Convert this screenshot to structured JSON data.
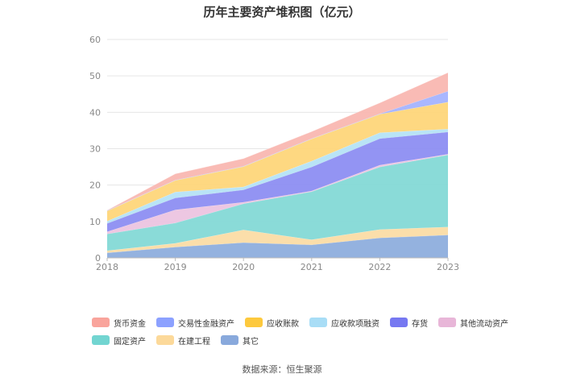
{
  "chart_data": {
    "type": "area",
    "stacked": true,
    "title": "历年主要资产堆积图（亿元）",
    "x": [
      "2018",
      "2019",
      "2020",
      "2021",
      "2022",
      "2023"
    ],
    "ylim": [
      0,
      60
    ],
    "yticks": [
      0,
      10,
      20,
      30,
      40,
      50,
      60
    ],
    "grid": true,
    "legend_position": "bottom",
    "series": [
      {
        "name": "其它",
        "color": "#8eaedd",
        "values": [
          1.4,
          3.0,
          4.2,
          3.6,
          5.5,
          6.3
        ]
      },
      {
        "name": "在建工程",
        "color": "#fbdca5",
        "values": [
          0.6,
          1.0,
          3.5,
          1.4,
          2.3,
          2.2
        ]
      },
      {
        "name": "固定资产",
        "color": "#84d9d6",
        "values": [
          4.6,
          5.6,
          7.2,
          13.2,
          17.2,
          19.8
        ]
      },
      {
        "name": "其他流动资产",
        "color": "#ecc4e0",
        "values": [
          0.6,
          3.6,
          0.4,
          0.2,
          0.5,
          0.2
        ]
      },
      {
        "name": "存货",
        "color": "#8d8ef2",
        "values": [
          2.3,
          3.3,
          3.4,
          6.6,
          7.3,
          6.1
        ]
      },
      {
        "name": "应收款项融资",
        "color": "#b5e3f5",
        "values": [
          0.6,
          1.6,
          0.8,
          1.6,
          1.6,
          0.8
        ]
      },
      {
        "name": "应收账款",
        "color": "#fed67a",
        "values": [
          2.8,
          3.2,
          5.6,
          6.1,
          5.1,
          7.4
        ]
      },
      {
        "name": "交易性金融资产",
        "color": "#a4b3ff",
        "values": [
          0.1,
          0.1,
          0.1,
          0.1,
          0.1,
          3.0
        ]
      },
      {
        "name": "货币资金",
        "color": "#f9b7b1",
        "values": [
          0.1,
          1.7,
          2.1,
          1.9,
          3.0,
          5.1
        ]
      }
    ]
  },
  "legend": {
    "row1": [
      {
        "name": "货币资金",
        "color": "#f9a49c"
      },
      {
        "name": "交易性金融资产",
        "color": "#8ca1ff"
      },
      {
        "name": "应收账款",
        "color": "#fdc93d"
      },
      {
        "name": "应收款项融资",
        "color": "#a8ddf6"
      },
      {
        "name": "存货",
        "color": "#7678f1"
      },
      {
        "name": "其他流动资产",
        "color": "#e8b6d8"
      }
    ],
    "row2": [
      {
        "name": "固定资产",
        "color": "#72d5d1"
      },
      {
        "name": "在建工程",
        "color": "#fcd99a"
      },
      {
        "name": "其它",
        "color": "#89a9dc"
      }
    ]
  },
  "source": "数据来源：恒生聚源"
}
